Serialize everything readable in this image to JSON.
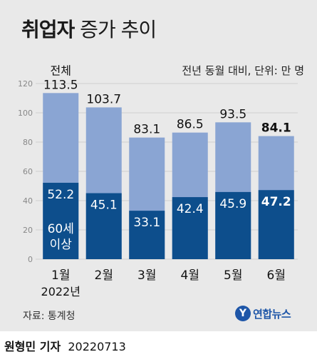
{
  "title_bold": "취업자",
  "title_rest": " 증가 추이",
  "unit_note": "전년 동월 대비, 단위: 만 명",
  "total_label": "전체",
  "sub_label_line1": "60세",
  "sub_label_line2": "이상",
  "year_label": "2022년",
  "source": "자료: 통계청",
  "logo_text": "연합뉴스",
  "byline_name": "원형민 기자",
  "byline_date": "20220713",
  "colors": {
    "total": "#8aa5d3",
    "over60": "#0d4e8c",
    "background": "#e9e9e9",
    "grid": "#cfcfcf",
    "logo": "#1e56a8"
  },
  "chart_data": {
    "type": "bar",
    "categories": [
      "1월",
      "2월",
      "3월",
      "4월",
      "5월",
      "6월"
    ],
    "series": [
      {
        "name": "전체",
        "values": [
          113.5,
          103.7,
          83.1,
          86.5,
          93.5,
          84.1
        ]
      },
      {
        "name": "60세 이상",
        "values": [
          52.2,
          45.1,
          33.1,
          42.4,
          45.9,
          47.2
        ]
      }
    ],
    "ylim": [
      0,
      120
    ],
    "yticks": [
      0,
      20,
      40,
      60,
      80,
      100,
      120
    ],
    "grid": true,
    "highlight_index": 5
  }
}
